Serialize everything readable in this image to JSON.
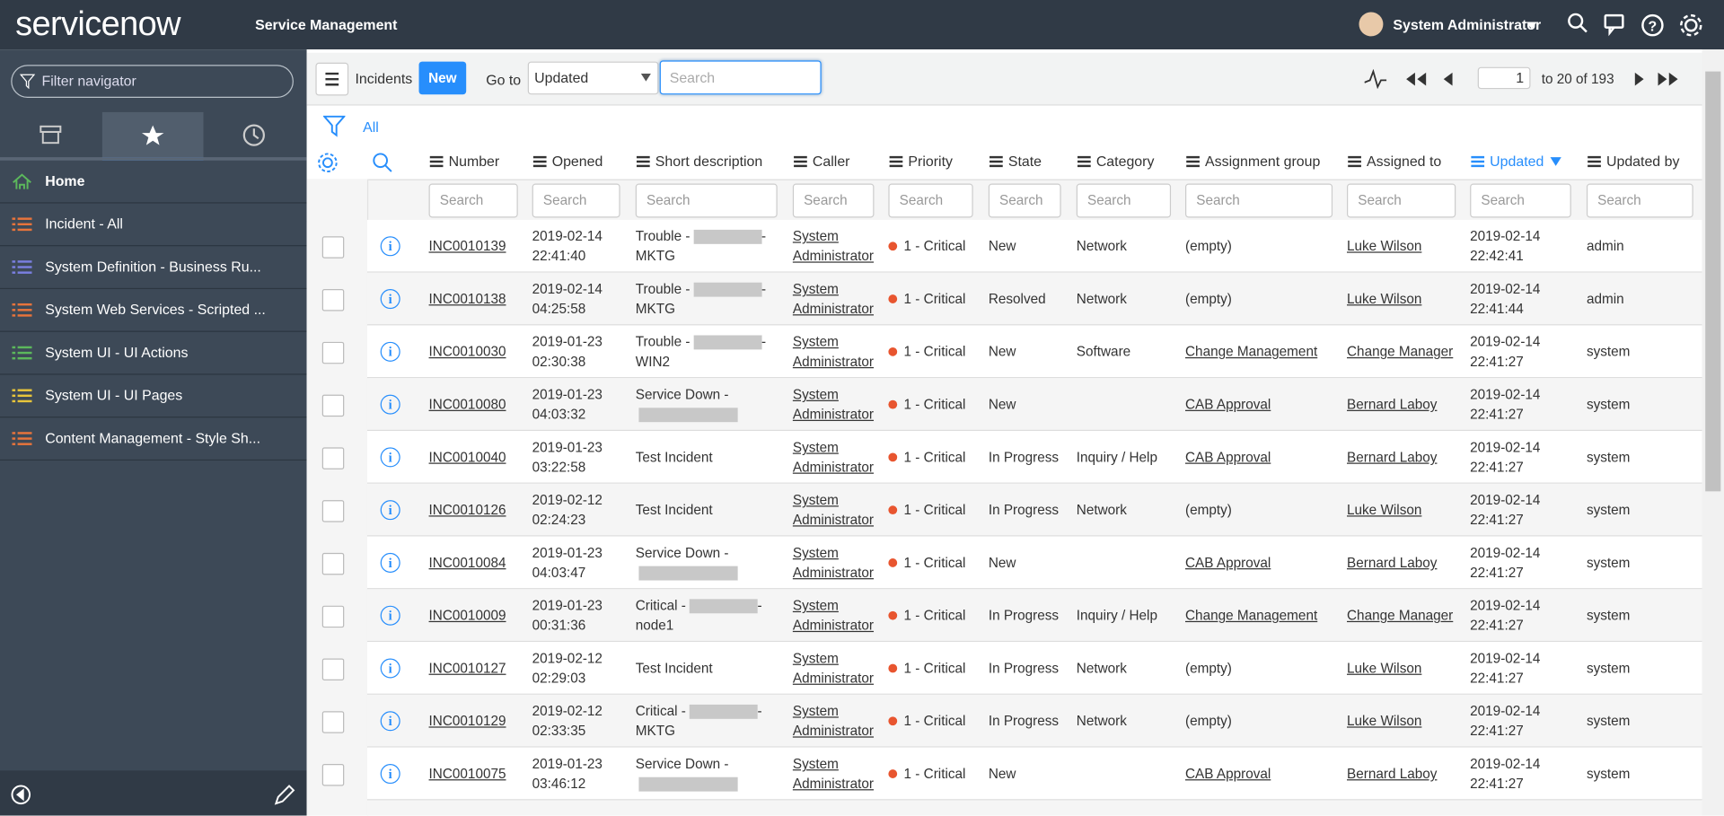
{
  "header": {
    "logo": "servicenow",
    "product": "Service Management",
    "user": "System Administrator"
  },
  "navigator": {
    "filter_placeholder": "Filter navigator",
    "items": [
      {
        "label": "Home",
        "color": "#5cb85c"
      },
      {
        "label": "Incident - All",
        "color": "#e8743b"
      },
      {
        "label": "System Definition - Business Ru...",
        "color": "#7a7fe0"
      },
      {
        "label": "System Web Services - Scripted ...",
        "color": "#e8743b"
      },
      {
        "label": "System UI - UI Actions",
        "color": "#5cb85c"
      },
      {
        "label": "System UI - UI Pages",
        "color": "#e8c53b"
      },
      {
        "label": "Content Management - Style Sh...",
        "color": "#e8743b"
      }
    ]
  },
  "list": {
    "title": "Incidents",
    "new_button": "New",
    "goto_label": "Go to",
    "goto_field": "Updated",
    "search_placeholder": "Search",
    "page": "1",
    "range": "to 20 of 193",
    "filter": "All",
    "empty_text": "(empty)",
    "columns": [
      "Number",
      "Opened",
      "Short description",
      "Caller",
      "Priority",
      "State",
      "Category",
      "Assignment group",
      "Assigned to",
      "Updated",
      "Updated by"
    ],
    "sorted_column": 9,
    "rows": [
      {
        "number": "INC0010139",
        "opened": "2019-02-14 22:41:40",
        "desc": {
          "text": "Trouble -",
          "redacted": true,
          "tail": "- MKTG"
        },
        "caller": "System Administrator",
        "priority": "1 - Critical",
        "state": "New",
        "category": "Network",
        "group": null,
        "assigned": "Luke Wilson",
        "updated": "2019-02-14 22:42:41",
        "updated_by": "admin"
      },
      {
        "number": "INC0010138",
        "opened": "2019-02-14 04:25:58",
        "desc": {
          "text": "Trouble -",
          "redacted": true,
          "tail": "- MKTG"
        },
        "caller": "System Administrator",
        "priority": "1 - Critical",
        "state": "Resolved",
        "category": "Network",
        "group": null,
        "assigned": "Luke Wilson",
        "updated": "2019-02-14 22:41:44",
        "updated_by": "admin"
      },
      {
        "number": "INC0010030",
        "opened": "2019-01-23 02:30:38",
        "desc": {
          "text": "Trouble -",
          "redacted": true,
          "tail": "- WIN2"
        },
        "caller": "System Administrator",
        "priority": "1 - Critical",
        "state": "New",
        "category": "Software",
        "group": "Change Management",
        "assigned": "Change Manager",
        "updated": "2019-02-14 22:41:27",
        "updated_by": "system"
      },
      {
        "number": "INC0010080",
        "opened": "2019-01-23 04:03:32",
        "desc": {
          "text": "Service Down -",
          "redacted": true
        },
        "caller": "System Administrator",
        "priority": "1 - Critical",
        "state": "New",
        "category": null,
        "group": "CAB Approval",
        "assigned": "Bernard Laboy",
        "updated": "2019-02-14 22:41:27",
        "updated_by": "system"
      },
      {
        "number": "INC0010040",
        "opened": "2019-01-23 03:22:58",
        "desc": {
          "text": "Test Incident",
          "redacted": false
        },
        "caller": "System Administrator",
        "priority": "1 - Critical",
        "state": "In Progress",
        "category": "Inquiry / Help",
        "group": "CAB Approval",
        "assigned": "Bernard Laboy",
        "updated": "2019-02-14 22:41:27",
        "updated_by": "system"
      },
      {
        "number": "INC0010126",
        "opened": "2019-02-12 02:24:23",
        "desc": {
          "text": "Test Incident",
          "redacted": false
        },
        "caller": "System Administrator",
        "priority": "1 - Critical",
        "state": "In Progress",
        "category": "Network",
        "group": null,
        "assigned": "Luke Wilson",
        "updated": "2019-02-14 22:41:27",
        "updated_by": "system"
      },
      {
        "number": "INC0010084",
        "opened": "2019-01-23 04:03:47",
        "desc": {
          "text": "Service Down -",
          "redacted": true
        },
        "caller": "System Administrator",
        "priority": "1 - Critical",
        "state": "New",
        "category": null,
        "group": "CAB Approval",
        "assigned": "Bernard Laboy",
        "updated": "2019-02-14 22:41:27",
        "updated_by": "system"
      },
      {
        "number": "INC0010009",
        "opened": "2019-01-23 00:31:36",
        "desc": {
          "text": "Critical -",
          "redacted": true,
          "tail": "- node1"
        },
        "caller": "System Administrator",
        "priority": "1 - Critical",
        "state": "In Progress",
        "category": "Inquiry / Help",
        "group": "Change Management",
        "assigned": "Change Manager",
        "updated": "2019-02-14 22:41:27",
        "updated_by": "system"
      },
      {
        "number": "INC0010127",
        "opened": "2019-02-12 02:29:03",
        "desc": {
          "text": "Test Incident",
          "redacted": false
        },
        "caller": "System Administrator",
        "priority": "1 - Critical",
        "state": "In Progress",
        "category": "Network",
        "group": null,
        "assigned": "Luke Wilson",
        "updated": "2019-02-14 22:41:27",
        "updated_by": "system"
      },
      {
        "number": "INC0010129",
        "opened": "2019-02-12 02:33:35",
        "desc": {
          "text": "Critical -",
          "redacted": true,
          "tail": "- MKTG"
        },
        "caller": "System Administrator",
        "priority": "1 - Critical",
        "state": "In Progress",
        "category": "Network",
        "group": null,
        "assigned": "Luke Wilson",
        "updated": "2019-02-14 22:41:27",
        "updated_by": "system"
      },
      {
        "number": "INC0010075",
        "opened": "2019-01-23 03:46:12",
        "desc": {
          "text": "Service Down -",
          "redacted": true
        },
        "caller": "System Administrator",
        "priority": "1 - Critical",
        "state": "New",
        "category": null,
        "group": "CAB Approval",
        "assigned": "Bernard Laboy",
        "updated": "2019-02-14 22:41:27",
        "updated_by": "system"
      }
    ]
  }
}
